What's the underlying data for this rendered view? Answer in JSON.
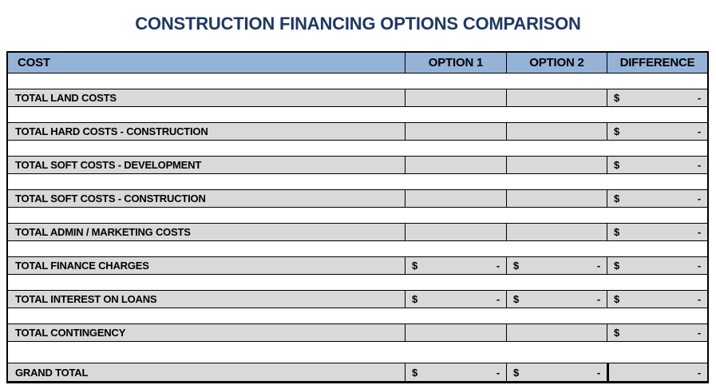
{
  "title": "CONSTRUCTION FINANCING OPTIONS COMPARISON",
  "colors": {
    "title_text": "#1F3864",
    "header_bg": "#95B3D7",
    "data_row_bg": "#D9D9D9",
    "border": "#000000"
  },
  "table": {
    "headers": [
      "COST",
      "OPTION 1",
      "OPTION 2",
      "DIFFERENCE"
    ],
    "rows": [
      {
        "label": "TOTAL LAND COSTS",
        "option1": {
          "symbol": "",
          "amount": ""
        },
        "option2": {
          "symbol": "",
          "amount": ""
        },
        "difference": {
          "symbol": "$",
          "amount": "-"
        }
      },
      {
        "label": "TOTAL HARD COSTS - CONSTRUCTION",
        "option1": {
          "symbol": "",
          "amount": ""
        },
        "option2": {
          "symbol": "",
          "amount": ""
        },
        "difference": {
          "symbol": "$",
          "amount": "-"
        }
      },
      {
        "label": "TOTAL SOFT COSTS - DEVELOPMENT",
        "option1": {
          "symbol": "",
          "amount": ""
        },
        "option2": {
          "symbol": "",
          "amount": ""
        },
        "difference": {
          "symbol": "$",
          "amount": "-"
        }
      },
      {
        "label": "TOTAL SOFT COSTS - CONSTRUCTION",
        "option1": {
          "symbol": "",
          "amount": ""
        },
        "option2": {
          "symbol": "",
          "amount": ""
        },
        "difference": {
          "symbol": "$",
          "amount": "-"
        }
      },
      {
        "label": "TOTAL ADMIN / MARKETING COSTS",
        "option1": {
          "symbol": "",
          "amount": ""
        },
        "option2": {
          "symbol": "",
          "amount": ""
        },
        "difference": {
          "symbol": "$",
          "amount": "-"
        }
      },
      {
        "label": "TOTAL FINANCE CHARGES",
        "option1": {
          "symbol": "$",
          "amount": "-"
        },
        "option2": {
          "symbol": "$",
          "amount": "-"
        },
        "difference": {
          "symbol": "$",
          "amount": "-"
        }
      },
      {
        "label": "TOTAL INTEREST ON LOANS",
        "option1": {
          "symbol": "$",
          "amount": "-"
        },
        "option2": {
          "symbol": "$",
          "amount": "-"
        },
        "difference": {
          "symbol": "$",
          "amount": "-"
        }
      },
      {
        "label": "TOTAL CONTINGENCY",
        "option1": {
          "symbol": "",
          "amount": ""
        },
        "option2": {
          "symbol": "",
          "amount": ""
        },
        "difference": {
          "symbol": "$",
          "amount": "-"
        }
      },
      {
        "label": "GRAND TOTAL",
        "option1": {
          "symbol": "$",
          "amount": "-"
        },
        "option2": {
          "symbol": "$",
          "amount": "-"
        },
        "difference": {
          "symbol": "",
          "amount": "-"
        }
      }
    ]
  }
}
